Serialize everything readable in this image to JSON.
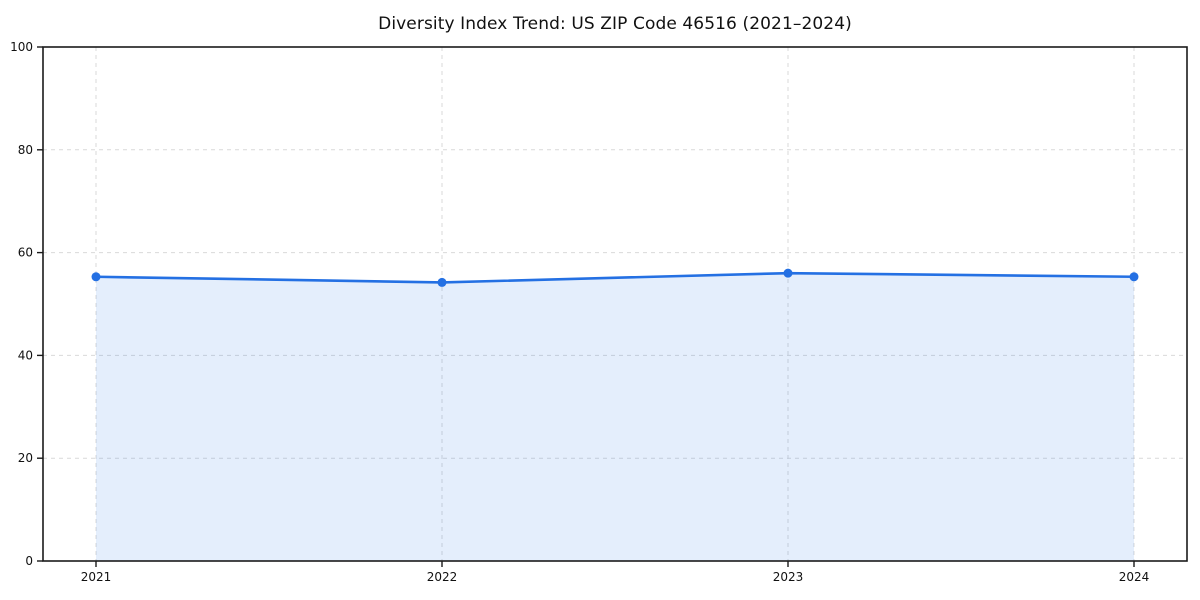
{
  "chart_data": {
    "type": "line",
    "title": "Diversity Index Trend: US ZIP Code 46516 (2021–2024)",
    "x": [
      "2021",
      "2022",
      "2023",
      "2024"
    ],
    "series": [
      {
        "name": "Diversity Index",
        "values": [
          55.3,
          54.2,
          56.0,
          55.3
        ]
      }
    ],
    "xlabel": "",
    "ylabel": "",
    "ylim": [
      0,
      100
    ],
    "yticks": [
      0,
      20,
      40,
      60,
      80,
      100
    ],
    "grid": "dashed, both axes",
    "legend": "none",
    "area_fill": true,
    "marker": "circle",
    "colors": {
      "line": "#2470e3",
      "marker": "#2470e3",
      "fill": "#2470e3",
      "fill_opacity": 0.12,
      "grid": "#d9d9d9",
      "spine": "#1a1a1a",
      "tick_text": "#111111",
      "background": "#ffffff"
    }
  }
}
